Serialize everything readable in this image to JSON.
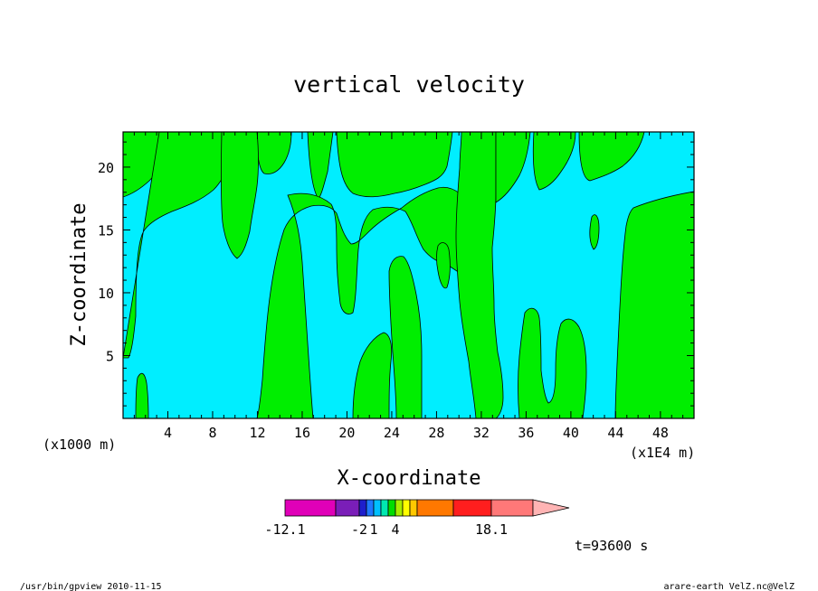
{
  "chart_data": {
    "type": "heatmap",
    "title": "vertical velocity",
    "xlabel": "X-coordinate",
    "ylabel": "Z-coordinate",
    "x_unit_left": "(x1000 m)",
    "x_unit_right": "(x1E4 m)",
    "xlim": [
      0,
      51
    ],
    "ylim": [
      0,
      22.8
    ],
    "x_ticks": [
      4,
      8,
      12,
      16,
      20,
      24,
      28,
      32,
      36,
      40,
      44,
      48
    ],
    "y_ticks": [
      5,
      10,
      15,
      20
    ],
    "field_colors": {
      "negative_small": "#00eeff",
      "positive_small": "#00ee00"
    },
    "colorbar": {
      "colors": [
        "#e000b8",
        "#7a1eb8",
        "#1e1ecc",
        "#1e78ff",
        "#00c0ff",
        "#00e8b0",
        "#00dd00",
        "#a8ee00",
        "#ffff00",
        "#ffc800",
        "#ff7800",
        "#ff1e1e",
        "#ff7878",
        "#ffb4b4"
      ],
      "labels": [
        "-12.1",
        "-2",
        "1",
        "4",
        "18.1"
      ]
    },
    "annotation_time": "t=93600 s",
    "footer_left": "/usr/bin/gpview  2010-11-15",
    "footer_right": "arare-earth_VelZ.nc@VelZ"
  }
}
